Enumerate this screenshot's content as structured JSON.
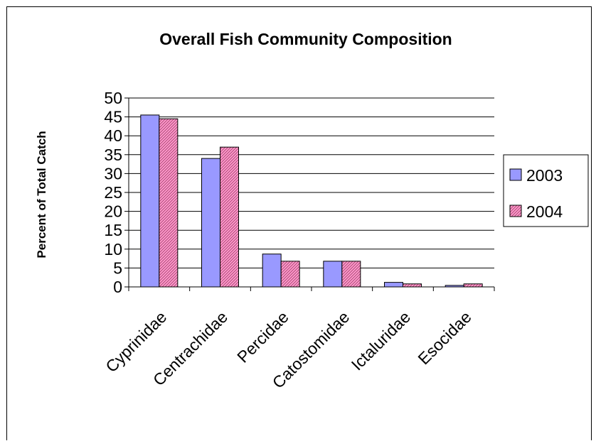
{
  "chart_data": {
    "type": "bar",
    "title": "Overall Fish Community Composition",
    "xlabel": "",
    "ylabel": "Percent of Total Catch",
    "categories": [
      "Cyprinidae",
      "Centrachidae",
      "Percidae",
      "Catostomidae",
      "Ictaluridae",
      "Esocidae"
    ],
    "series": [
      {
        "name": "2003",
        "values": [
          45.5,
          34,
          8.7,
          6.8,
          1.2,
          0.4
        ],
        "color": "#9999ff",
        "pattern": "solid"
      },
      {
        "name": "2004",
        "values": [
          44.5,
          37,
          6.8,
          6.8,
          0.8,
          0.8
        ],
        "color": "#ff99cc",
        "pattern": "diagonal-hatch"
      }
    ],
    "ylim": [
      0,
      50
    ],
    "yticks": [
      0,
      5,
      10,
      15,
      20,
      25,
      30,
      35,
      40,
      45,
      50
    ],
    "grid": true,
    "legend_position": "right"
  }
}
